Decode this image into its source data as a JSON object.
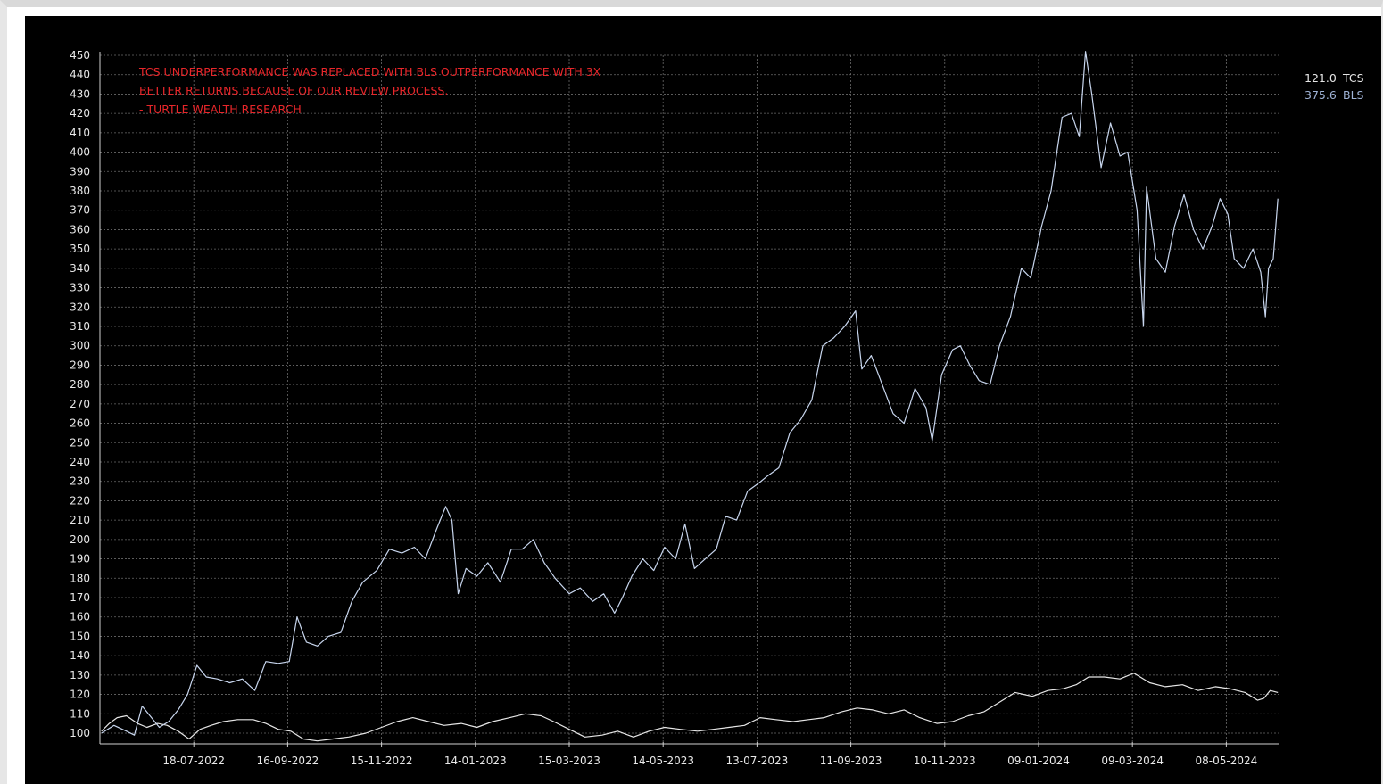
{
  "chart_data": {
    "type": "line",
    "annotation": [
      "TCS UNDERPERFORMANCE WAS REPLACED WITH BLS OUTPERFORMANCE WITH 3X",
      "BETTER RETURNS BECAUSE OF OUR REVIEW PROCESS.",
      "- TURTLE WEALTH RESEARCH"
    ],
    "ylim": [
      100,
      450
    ],
    "yticks": [
      100,
      110,
      120,
      130,
      140,
      150,
      160,
      170,
      180,
      190,
      200,
      210,
      220,
      230,
      240,
      250,
      260,
      270,
      280,
      290,
      300,
      310,
      320,
      330,
      340,
      350,
      360,
      370,
      380,
      390,
      400,
      410,
      420,
      430,
      440,
      450
    ],
    "xticks": [
      "18-07-2022",
      "16-09-2022",
      "15-11-2022",
      "14-01-2023",
      "15-03-2023",
      "14-05-2023",
      "13-07-2023",
      "11-09-2023",
      "10-11-2023",
      "09-01-2024",
      "09-03-2024",
      "08-05-2024"
    ],
    "grid": true,
    "legend_position": "right",
    "series": [
      {
        "name": "TCS",
        "last_value": "121.0",
        "color": "#e6e6e6",
        "points": [
          [
            "2022-05-20",
            101
          ],
          [
            "2022-05-25",
            105
          ],
          [
            "2022-05-30",
            108
          ],
          [
            "2022-06-05",
            109
          ],
          [
            "2022-06-12",
            105
          ],
          [
            "2022-06-18",
            103
          ],
          [
            "2022-06-25",
            105
          ],
          [
            "2022-07-01",
            104
          ],
          [
            "2022-07-08",
            101
          ],
          [
            "2022-07-15",
            97
          ],
          [
            "2022-07-22",
            102
          ],
          [
            "2022-07-29",
            104
          ],
          [
            "2022-08-06",
            106
          ],
          [
            "2022-08-15",
            107
          ],
          [
            "2022-08-25",
            107
          ],
          [
            "2022-09-02",
            105
          ],
          [
            "2022-09-10",
            102
          ],
          [
            "2022-09-18",
            101
          ],
          [
            "2022-09-26",
            97
          ],
          [
            "2022-10-05",
            96
          ],
          [
            "2022-10-15",
            97
          ],
          [
            "2022-10-25",
            98
          ],
          [
            "2022-11-05",
            100
          ],
          [
            "2022-11-15",
            103
          ],
          [
            "2022-11-25",
            106
          ],
          [
            "2022-12-05",
            108
          ],
          [
            "2022-12-15",
            106
          ],
          [
            "2022-12-25",
            104
          ],
          [
            "2023-01-05",
            105
          ],
          [
            "2023-01-15",
            103
          ],
          [
            "2023-01-25",
            106
          ],
          [
            "2023-02-05",
            108
          ],
          [
            "2023-02-15",
            110
          ],
          [
            "2023-02-25",
            109
          ],
          [
            "2023-03-05",
            106
          ],
          [
            "2023-03-15",
            102
          ],
          [
            "2023-03-25",
            98
          ],
          [
            "2023-04-05",
            99
          ],
          [
            "2023-04-15",
            101
          ],
          [
            "2023-04-25",
            98
          ],
          [
            "2023-05-05",
            101
          ],
          [
            "2023-05-15",
            103
          ],
          [
            "2023-05-25",
            102
          ],
          [
            "2023-06-05",
            101
          ],
          [
            "2023-06-15",
            102
          ],
          [
            "2023-06-25",
            103
          ],
          [
            "2023-07-05",
            104
          ],
          [
            "2023-07-15",
            108
          ],
          [
            "2023-07-25",
            107
          ],
          [
            "2023-08-05",
            106
          ],
          [
            "2023-08-15",
            107
          ],
          [
            "2023-08-25",
            108
          ],
          [
            "2023-09-05",
            111
          ],
          [
            "2023-09-15",
            113
          ],
          [
            "2023-09-25",
            112
          ],
          [
            "2023-10-05",
            110
          ],
          [
            "2023-10-15",
            112
          ],
          [
            "2023-10-25",
            108
          ],
          [
            "2023-11-05",
            105
          ],
          [
            "2023-11-15",
            106
          ],
          [
            "2023-11-25",
            109
          ],
          [
            "2023-12-05",
            111
          ],
          [
            "2023-12-15",
            116
          ],
          [
            "2023-12-25",
            121
          ],
          [
            "2024-01-05",
            119
          ],
          [
            "2024-01-15",
            122
          ],
          [
            "2024-01-25",
            123
          ],
          [
            "2024-02-02",
            125
          ],
          [
            "2024-02-10",
            129
          ],
          [
            "2024-02-20",
            129
          ],
          [
            "2024-03-01",
            128
          ],
          [
            "2024-03-10",
            131
          ],
          [
            "2024-03-20",
            126
          ],
          [
            "2024-03-30",
            124
          ],
          [
            "2024-04-10",
            125
          ],
          [
            "2024-04-20",
            122
          ],
          [
            "2024-05-01",
            124
          ],
          [
            "2024-05-10",
            123
          ],
          [
            "2024-05-20",
            121
          ],
          [
            "2024-05-28",
            117
          ],
          [
            "2024-06-01",
            118
          ],
          [
            "2024-06-05",
            122
          ],
          [
            "2024-06-10",
            121
          ]
        ]
      },
      {
        "name": "BLS",
        "last_value": "375.6",
        "color": "#c8d6ee",
        "points": [
          [
            "2022-05-20",
            100
          ],
          [
            "2022-05-28",
            104
          ],
          [
            "2022-06-05",
            101
          ],
          [
            "2022-06-10",
            99
          ],
          [
            "2022-06-15",
            114
          ],
          [
            "2022-06-20",
            109
          ],
          [
            "2022-06-26",
            103
          ],
          [
            "2022-07-02",
            106
          ],
          [
            "2022-07-08",
            112
          ],
          [
            "2022-07-14",
            120
          ],
          [
            "2022-07-20",
            135
          ],
          [
            "2022-07-26",
            129
          ],
          [
            "2022-08-02",
            128
          ],
          [
            "2022-08-10",
            126
          ],
          [
            "2022-08-18",
            128
          ],
          [
            "2022-08-26",
            122
          ],
          [
            "2022-09-02",
            137
          ],
          [
            "2022-09-10",
            136
          ],
          [
            "2022-09-17",
            137
          ],
          [
            "2022-09-22",
            160
          ],
          [
            "2022-09-28",
            147
          ],
          [
            "2022-10-05",
            145
          ],
          [
            "2022-10-12",
            150
          ],
          [
            "2022-10-20",
            152
          ],
          [
            "2022-10-27",
            168
          ],
          [
            "2022-11-03",
            178
          ],
          [
            "2022-11-12",
            184
          ],
          [
            "2022-11-20",
            195
          ],
          [
            "2022-11-28",
            193
          ],
          [
            "2022-12-06",
            196
          ],
          [
            "2022-12-13",
            190
          ],
          [
            "2022-12-20",
            205
          ],
          [
            "2022-12-26",
            217
          ],
          [
            "2022-12-30",
            210
          ],
          [
            "2023-01-03",
            172
          ],
          [
            "2023-01-08",
            185
          ],
          [
            "2023-01-15",
            181
          ],
          [
            "2023-01-22",
            188
          ],
          [
            "2023-01-30",
            178
          ],
          [
            "2023-02-06",
            195
          ],
          [
            "2023-02-13",
            195
          ],
          [
            "2023-02-20",
            200
          ],
          [
            "2023-02-27",
            188
          ],
          [
            "2023-03-06",
            180
          ],
          [
            "2023-03-15",
            172
          ],
          [
            "2023-03-22",
            175
          ],
          [
            "2023-03-30",
            168
          ],
          [
            "2023-04-06",
            172
          ],
          [
            "2023-04-13",
            162
          ],
          [
            "2023-04-18",
            170
          ],
          [
            "2023-04-24",
            181
          ],
          [
            "2023-05-01",
            190
          ],
          [
            "2023-05-08",
            184
          ],
          [
            "2023-05-15",
            196
          ],
          [
            "2023-05-22",
            190
          ],
          [
            "2023-05-28",
            208
          ],
          [
            "2023-06-03",
            185
          ],
          [
            "2023-06-10",
            190
          ],
          [
            "2023-06-17",
            195
          ],
          [
            "2023-06-23",
            212
          ],
          [
            "2023-06-30",
            210
          ],
          [
            "2023-07-07",
            225
          ],
          [
            "2023-07-14",
            229
          ],
          [
            "2023-07-20",
            233
          ],
          [
            "2023-07-27",
            237
          ],
          [
            "2023-08-03",
            255
          ],
          [
            "2023-08-10",
            262
          ],
          [
            "2023-08-17",
            272
          ],
          [
            "2023-08-24",
            300
          ],
          [
            "2023-08-31",
            304
          ],
          [
            "2023-09-07",
            310
          ],
          [
            "2023-09-14",
            318
          ],
          [
            "2023-09-18",
            288
          ],
          [
            "2023-09-24",
            295
          ],
          [
            "2023-10-01",
            280
          ],
          [
            "2023-10-08",
            265
          ],
          [
            "2023-10-15",
            260
          ],
          [
            "2023-10-22",
            278
          ],
          [
            "2023-10-29",
            268
          ],
          [
            "2023-11-02",
            251
          ],
          [
            "2023-11-08",
            285
          ],
          [
            "2023-11-15",
            298
          ],
          [
            "2023-11-20",
            300
          ],
          [
            "2023-11-26",
            290
          ],
          [
            "2023-12-02",
            282
          ],
          [
            "2023-12-09",
            280
          ],
          [
            "2023-12-15",
            300
          ],
          [
            "2023-12-22",
            315
          ],
          [
            "2023-12-29",
            340
          ],
          [
            "2024-01-04",
            335
          ],
          [
            "2024-01-11",
            362
          ],
          [
            "2024-01-17",
            380
          ],
          [
            "2024-01-24",
            418
          ],
          [
            "2024-01-30",
            420
          ],
          [
            "2024-02-04",
            408
          ],
          [
            "2024-02-08",
            452
          ],
          [
            "2024-02-12",
            430
          ],
          [
            "2024-02-18",
            392
          ],
          [
            "2024-02-24",
            415
          ],
          [
            "2024-03-01",
            398
          ],
          [
            "2024-03-06",
            400
          ],
          [
            "2024-03-12",
            370
          ],
          [
            "2024-03-16",
            310
          ],
          [
            "2024-03-18",
            382
          ],
          [
            "2024-03-24",
            345
          ],
          [
            "2024-03-30",
            338
          ],
          [
            "2024-04-05",
            362
          ],
          [
            "2024-04-11",
            378
          ],
          [
            "2024-04-17",
            360
          ],
          [
            "2024-04-23",
            350
          ],
          [
            "2024-04-29",
            362
          ],
          [
            "2024-05-04",
            376
          ],
          [
            "2024-05-09",
            368
          ],
          [
            "2024-05-13",
            345
          ],
          [
            "2024-05-19",
            340
          ],
          [
            "2024-05-25",
            350
          ],
          [
            "2024-05-30",
            338
          ],
          [
            "2024-06-02",
            315
          ],
          [
            "2024-06-04",
            340
          ],
          [
            "2024-06-07",
            345
          ],
          [
            "2024-06-10",
            376
          ]
        ]
      }
    ]
  }
}
